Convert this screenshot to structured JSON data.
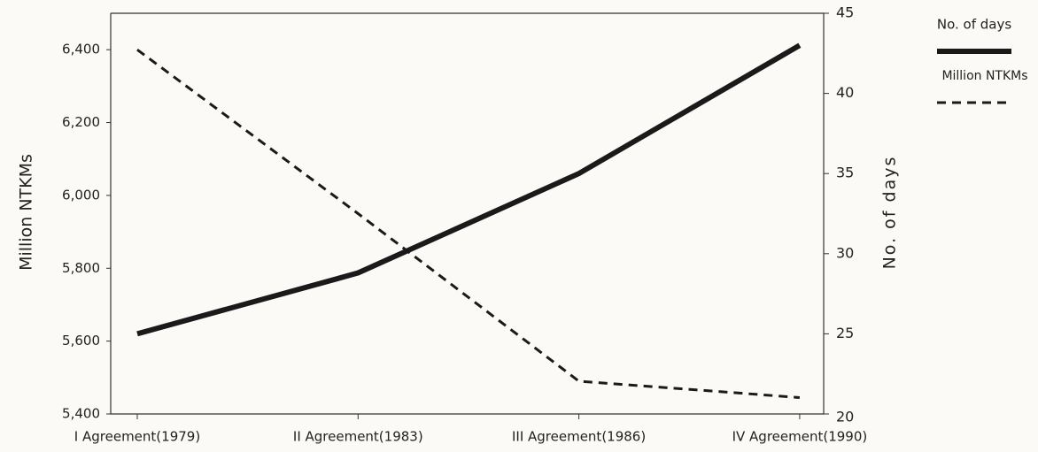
{
  "chart_data": {
    "type": "line",
    "categories": [
      "I Agreement(1979)",
      "II Agreement(1983)",
      "III Agreement(1986)",
      "IV Agreement(1990)"
    ],
    "series": [
      {
        "name": "No. of days",
        "color": "#1a1a1a",
        "style": "solid",
        "axis": "y2",
        "values": [
          25,
          28.8,
          35,
          43
        ]
      },
      {
        "name": "Million NTKMs",
        "color": "#1a1a1a",
        "style": "dashed",
        "axis": "y",
        "values": [
          6400,
          5950,
          5490,
          5445
        ]
      }
    ],
    "ylabel": "Million NTKMs",
    "y2label": "No. of days",
    "ylim": [
      5400,
      6500
    ],
    "yticks": [
      {
        "value": 5400,
        "label": "5,400"
      },
      {
        "value": 5600,
        "label": "5,600"
      },
      {
        "value": 5800,
        "label": "5,800"
      },
      {
        "value": 6000,
        "label": "6,000"
      },
      {
        "value": 6200,
        "label": "6,200"
      },
      {
        "value": 6400,
        "label": "6,400"
      }
    ],
    "y2lim": [
      20,
      45
    ],
    "y2ticks": [
      20,
      25,
      30,
      35,
      40,
      45
    ],
    "grid": false,
    "legend": "right"
  }
}
